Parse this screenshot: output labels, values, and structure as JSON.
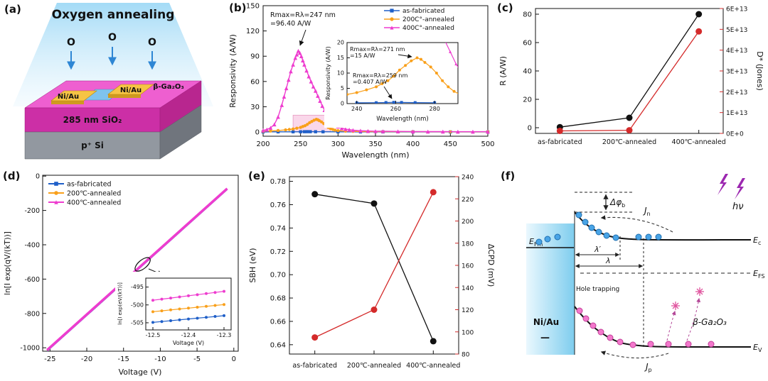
{
  "figure": {
    "panels": {
      "a": "(a)",
      "b": "(b)",
      "c": "(c)",
      "d": "(d)",
      "e": "(e)",
      "f": "(f)"
    }
  },
  "colors": {
    "as_fabricated": "#1f5fc8",
    "annealed_200": "#f9a01b",
    "annealed_400": "#ee3ccf",
    "series_black": "#111111",
    "series_red": "#d42a2a"
  },
  "panel_a": {
    "title": "Oxygen annealing",
    "oxygen": "O",
    "electrode_left": "Ni/Au",
    "electrode_right": "Ni/Au",
    "film": "β-Ga₂O₃",
    "oxide": "285 nm SiO₂",
    "substrate": "p⁺ Si"
  },
  "chart_data": [
    {
      "id": "b",
      "type": "line",
      "xlabel": "Wavelength (nm)",
      "ylabel": "Responsivity (A/W)",
      "xlim": [
        200,
        500
      ],
      "ylim": [
        -5,
        150
      ],
      "xticks": [
        200,
        250,
        300,
        350,
        400,
        450,
        500
      ],
      "yticks": [
        0,
        30,
        60,
        90,
        120,
        150
      ],
      "annotation": {
        "line1": "Rmax=Rλ=247 nm",
        "line2": "=96.40 A/W"
      },
      "highlight_region": {
        "x0": 240,
        "x1": 290,
        "y0": 0,
        "y1": 20
      },
      "series": [
        {
          "name": "as-fabricated",
          "color": "#1f5fc8",
          "marker": "square",
          "x": [
            200,
            220,
            240,
            250,
            255,
            259,
            263,
            270,
            280,
            300,
            330,
            360,
            400,
            450,
            500
          ],
          "y": [
            0.15,
            0.2,
            0.25,
            0.3,
            0.36,
            0.407,
            0.38,
            0.33,
            0.28,
            0.2,
            0.16,
            0.13,
            0.12,
            0.1,
            0.1
          ]
        },
        {
          "name": "200C°-annealed",
          "color": "#f9a01b",
          "marker": "circle",
          "x": [
            200,
            210,
            220,
            230,
            235,
            240,
            245,
            250,
            253,
            256,
            259,
            262,
            265,
            268,
            271,
            273,
            275,
            278,
            281,
            284,
            287,
            290,
            293,
            296,
            300,
            310,
            320,
            340,
            360,
            400,
            450,
            500
          ],
          "y": [
            0.8,
            1.2,
            1.8,
            2.5,
            3,
            3.6,
            4.5,
            5.5,
            6.5,
            7.5,
            9,
            11,
            12.5,
            14,
            15,
            14.5,
            13.5,
            12,
            10,
            7.5,
            5.5,
            4,
            3,
            2.2,
            1.7,
            1,
            0.7,
            0.5,
            0.4,
            0.35,
            0.3,
            0.3
          ]
        },
        {
          "name": "400C°-annealed",
          "color": "#ee3ccf",
          "marker": "triangle",
          "x": [
            200,
            205,
            210,
            215,
            220,
            225,
            228,
            231,
            234,
            237,
            240,
            243,
            245,
            247,
            249,
            251,
            253,
            255,
            258,
            261,
            264,
            267,
            270,
            273,
            276,
            279,
            282,
            285,
            288,
            291,
            294,
            297,
            300,
            305,
            310,
            315,
            320,
            330,
            340,
            350,
            360,
            380,
            400,
            420,
            440,
            460,
            480,
            500
          ],
          "y": [
            2,
            3,
            5,
            9,
            18,
            32,
            42,
            52,
            62,
            72,
            80,
            88,
            92,
            96.4,
            94,
            90,
            85,
            80,
            73,
            66,
            60,
            54,
            49,
            43,
            37,
            31,
            26,
            21,
            17,
            13,
            10,
            8,
            6.5,
            4.5,
            3.5,
            2.8,
            2.2,
            1.6,
            1.2,
            1,
            0.9,
            0.7,
            0.6,
            0.5,
            0.5,
            0.4,
            0.4,
            0.4
          ]
        }
      ],
      "inset": {
        "xlabel": "Wavelength (nm)",
        "ylabel": "Responsivity (A/W)",
        "xlim": [
          235,
          292
        ],
        "ylim": [
          0,
          20
        ],
        "xticks": [
          240,
          260,
          280
        ],
        "yticks": [
          0,
          5,
          10,
          15,
          20
        ],
        "annotation1": {
          "line1": "Rmax=Rλ=271 nm",
          "line2": "=15 A/W"
        },
        "annotation2": {
          "line1": "Rmax=Rλ=259 nm",
          "line2": "=0.407 A/W"
        }
      }
    },
    {
      "id": "c",
      "type": "line",
      "categories": [
        "as-fabricated",
        "200℃-annealed",
        "400℃-annealed"
      ],
      "left_axis": {
        "label": "R (A/W)",
        "ticks": [
          0,
          20,
          40,
          60,
          80
        ],
        "lim": [
          -4,
          84
        ],
        "color": "#111111",
        "values": [
          0.4,
          7,
          80
        ]
      },
      "right_axis": {
        "label": "D* (Jones)",
        "ticks": [
          "0E+0",
          "1E+13",
          "2E+13",
          "3E+13",
          "4E+13",
          "5E+13",
          "6E+13"
        ],
        "tick_values": [
          0,
          10000000000000.0,
          20000000000000.0,
          30000000000000.0,
          40000000000000.0,
          50000000000000.0,
          60000000000000.0
        ],
        "lim": [
          0,
          60000000000000.0
        ],
        "color": "#d42a2a",
        "values": [
          1200000000000.0,
          1500000000000.0,
          49000000000000.0
        ]
      }
    },
    {
      "id": "d",
      "type": "line",
      "xlabel": "Voltage (V)",
      "ylabel": "ln[I exp(qV/(kT))]",
      "xlim": [
        -26,
        0.6
      ],
      "ylim": [
        -1020,
        5
      ],
      "xticks": [
        -25,
        -20,
        -15,
        -10,
        -5,
        0
      ],
      "yticks": [
        0,
        -200,
        -400,
        -600,
        -800,
        -1000
      ],
      "series": [
        {
          "name": "as-fabricated",
          "color": "#1f5fc8",
          "marker": "square",
          "x": [
            -25.4,
            -0.9
          ],
          "y": [
            -1019.4,
            -78.6
          ],
          "width": 1.6
        },
        {
          "name": "200℃-annealed",
          "color": "#f9a01b",
          "marker": "circle",
          "x": [
            -25.4,
            -0.9
          ],
          "y": [
            -1016.4,
            -75.6
          ],
          "width": 1.6
        },
        {
          "name": "400℃-annealed",
          "color": "#ee3ccf",
          "marker": "triangle",
          "x": [
            -25.4,
            -0.9
          ],
          "y": [
            -1013.4,
            -72.6
          ],
          "width": 3.5
        }
      ],
      "inset": {
        "xlabel": "Voltage (V)",
        "ylabel": "ln[I exp(eV/(kT))]",
        "xlim": [
          -12.52,
          -12.28
        ],
        "ylim": [
          -507,
          -492.5
        ],
        "xticks": [
          -12.5,
          -12.4,
          -12.3
        ],
        "yticks": [
          -495,
          -500,
          -505
        ],
        "series": [
          {
            "color": "#1f5fc8",
            "y_start": -504.9,
            "y_end": -503.0
          },
          {
            "color": "#f9a01b",
            "y_start": -501.9,
            "y_end": -499.9
          },
          {
            "color": "#ee3ccf",
            "y_start": -498.7,
            "y_end": -496.2
          }
        ]
      }
    },
    {
      "id": "e",
      "type": "line",
      "categories": [
        "as-fabricated",
        "200℃-annealed",
        "400℃-annealed"
      ],
      "left_axis": {
        "label": "SBH (eV)",
        "ticks": [
          0.64,
          0.66,
          0.68,
          0.7,
          0.72,
          0.74,
          0.76,
          0.78
        ],
        "lim": [
          0.632,
          0.784
        ],
        "color": "#111111",
        "values": [
          0.769,
          0.761,
          0.643
        ]
      },
      "right_axis": {
        "label": "ΔCPD (mV)",
        "ticks": [
          80,
          100,
          120,
          140,
          160,
          180,
          200,
          220,
          240
        ],
        "lim": [
          80,
          240
        ],
        "color": "#d42a2a",
        "values": [
          95,
          120,
          226
        ]
      }
    }
  ],
  "panel_f": {
    "delta_phi_main": "Δφ",
    "delta_phi_sub": "b",
    "hnu": "hν",
    "jn_main": "J",
    "jn_sub": "n",
    "jp_main": "J",
    "jp_sub": "p",
    "efm_main": "E",
    "efm_sub": "Fm",
    "efs_main": "E",
    "efs_sub": "FS",
    "ec_main": "E",
    "ec_sub": "c",
    "ev_main": "E",
    "ev_sub": "V",
    "lambda_prime": "λ′",
    "lambda": "λ",
    "hole_trapping": "Hole trapping",
    "metal": "Ni/Au",
    "semiconductor": "β-Ga₂O₃",
    "minus_sign": "—"
  }
}
